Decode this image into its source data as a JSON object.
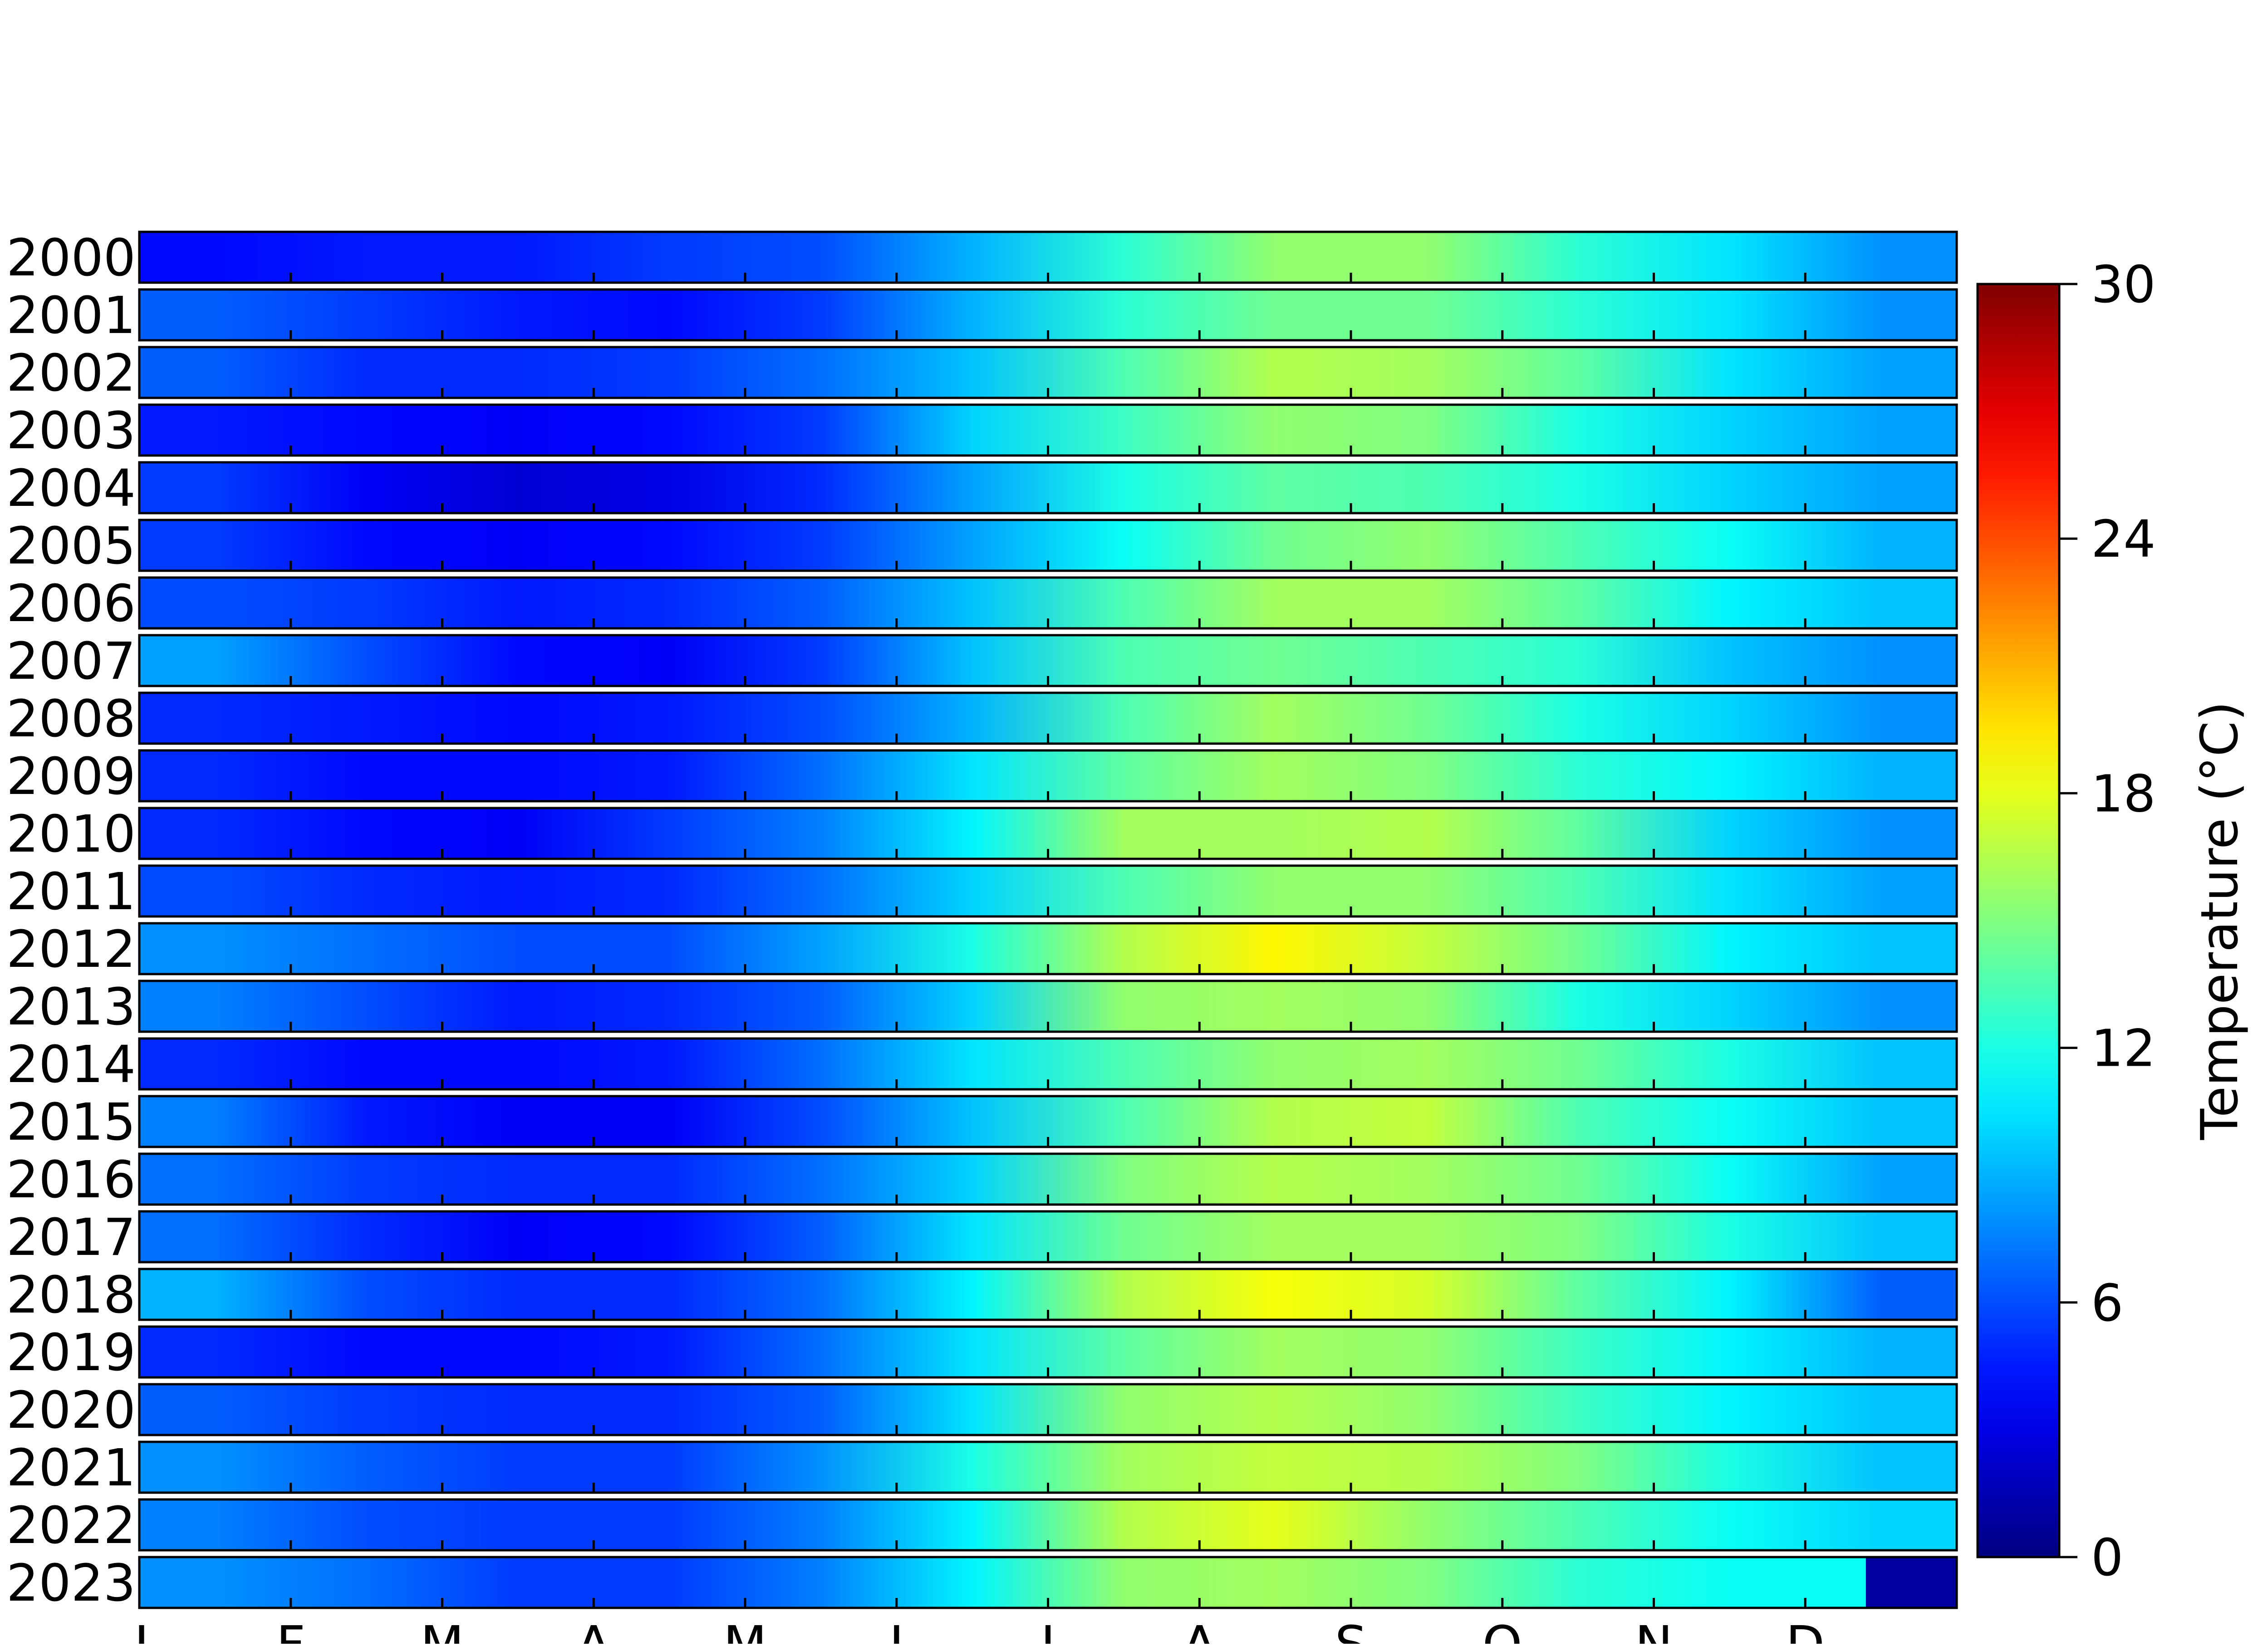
{
  "chart_data": {
    "type": "heatmap",
    "xlabel": "",
    "ylabel": "",
    "colorbar_label": "Temperature (°C)",
    "colorbar_range": [
      0,
      30
    ],
    "colorbar_ticks": [
      "0",
      "6",
      "12",
      "18",
      "24",
      "30"
    ],
    "colormap": "jet",
    "x_ticks": [
      "J",
      "F",
      "M",
      "A",
      "M",
      "J",
      "J",
      "A",
      "S",
      "O",
      "N",
      "D"
    ],
    "month_columns": [
      "Jan",
      "Feb",
      "Mar",
      "Apr",
      "May",
      "Jun",
      "Jul",
      "Aug",
      "Sep",
      "Oct",
      "Nov",
      "Dec"
    ],
    "years": [
      "2000",
      "2001",
      "2002",
      "2003",
      "2004",
      "2005",
      "2006",
      "2007",
      "2008",
      "2009",
      "2010",
      "2011",
      "2012",
      "2013",
      "2014",
      "2015",
      "2016",
      "2017",
      "2018",
      "2019",
      "2020",
      "2021",
      "2022",
      "2023"
    ],
    "monthly_values": [
      [
        4.0,
        4.5,
        4.5,
        5.5,
        6.0,
        9.0,
        12.5,
        15.5,
        15.5,
        12.5,
        10.5,
        8.0
      ],
      [
        6.5,
        5.5,
        4.5,
        4.0,
        5.5,
        9.0,
        12.5,
        14.5,
        14.5,
        12.5,
        10.5,
        8.0
      ],
      [
        6.5,
        5.0,
        5.0,
        5.5,
        7.0,
        9.5,
        13.5,
        16.5,
        16.0,
        14.0,
        10.5,
        8.5
      ],
      [
        4.5,
        4.0,
        3.5,
        4.0,
        5.5,
        10.0,
        13.0,
        15.5,
        15.0,
        12.0,
        10.0,
        8.5
      ],
      [
        5.5,
        3.5,
        2.5,
        3.0,
        5.0,
        8.5,
        12.0,
        14.0,
        13.5,
        12.0,
        10.0,
        8.5
      ],
      [
        5.5,
        4.0,
        3.5,
        4.0,
        5.5,
        8.5,
        11.5,
        14.5,
        15.5,
        13.5,
        11.5,
        9.0
      ],
      [
        6.0,
        5.5,
        4.5,
        5.0,
        6.5,
        9.5,
        13.5,
        16.0,
        16.0,
        14.0,
        11.0,
        9.5
      ],
      [
        8.5,
        6.0,
        4.0,
        3.5,
        5.5,
        9.5,
        13.5,
        14.5,
        13.5,
        12.5,
        9.5,
        8.0
      ],
      [
        5.0,
        4.5,
        4.0,
        4.5,
        6.0,
        9.0,
        13.5,
        16.0,
        14.5,
        12.0,
        10.0,
        8.0
      ],
      [
        5.0,
        4.0,
        4.0,
        4.5,
        7.0,
        10.5,
        14.0,
        16.0,
        15.0,
        12.5,
        11.0,
        9.0
      ],
      [
        5.0,
        4.0,
        3.5,
        5.5,
        7.5,
        11.0,
        16.0,
        16.0,
        16.5,
        14.0,
        10.0,
        8.0
      ],
      [
        6.0,
        5.0,
        4.5,
        5.0,
        7.0,
        10.0,
        13.5,
        15.5,
        15.5,
        13.5,
        10.5,
        8.5
      ],
      [
        8.0,
        7.0,
        6.0,
        6.0,
        8.5,
        12.0,
        16.5,
        19.0,
        17.0,
        14.5,
        11.0,
        9.5
      ],
      [
        7.5,
        6.0,
        4.5,
        5.0,
        6.5,
        10.0,
        15.5,
        16.0,
        15.5,
        12.0,
        10.0,
        8.0
      ],
      [
        5.0,
        4.0,
        4.0,
        4.5,
        7.0,
        10.5,
        13.5,
        15.5,
        16.0,
        14.5,
        12.0,
        9.5
      ],
      [
        7.5,
        4.5,
        3.5,
        3.5,
        6.0,
        9.5,
        13.5,
        16.5,
        17.0,
        13.5,
        11.5,
        9.5
      ],
      [
        7.0,
        5.5,
        5.0,
        5.0,
        7.0,
        10.0,
        15.0,
        16.5,
        16.0,
        14.5,
        11.5,
        8.5
      ],
      [
        7.0,
        5.0,
        3.5,
        4.0,
        6.5,
        10.5,
        14.5,
        16.0,
        16.0,
        15.0,
        12.0,
        9.5
      ],
      [
        9.0,
        6.0,
        5.0,
        5.0,
        7.0,
        11.0,
        16.5,
        18.5,
        17.5,
        14.0,
        11.0,
        6.5
      ],
      [
        5.0,
        4.0,
        4.0,
        4.5,
        7.0,
        10.5,
        14.0,
        16.0,
        15.5,
        13.0,
        11.0,
        9.0
      ],
      [
        6.5,
        5.5,
        5.0,
        5.0,
        6.5,
        10.5,
        15.5,
        16.5,
        15.5,
        13.0,
        11.0,
        9.5
      ],
      [
        8.0,
        6.5,
        5.5,
        5.5,
        8.0,
        12.0,
        16.0,
        17.0,
        16.5,
        15.0,
        12.0,
        9.5
      ],
      [
        7.5,
        6.0,
        5.5,
        5.5,
        7.5,
        11.0,
        16.5,
        18.0,
        15.5,
        13.5,
        11.5,
        10.0
      ],
      [
        8.0,
        7.0,
        5.5,
        5.5,
        7.5,
        11.0,
        15.5,
        16.0,
        15.0,
        12.5,
        11.5,
        null
      ]
    ]
  }
}
